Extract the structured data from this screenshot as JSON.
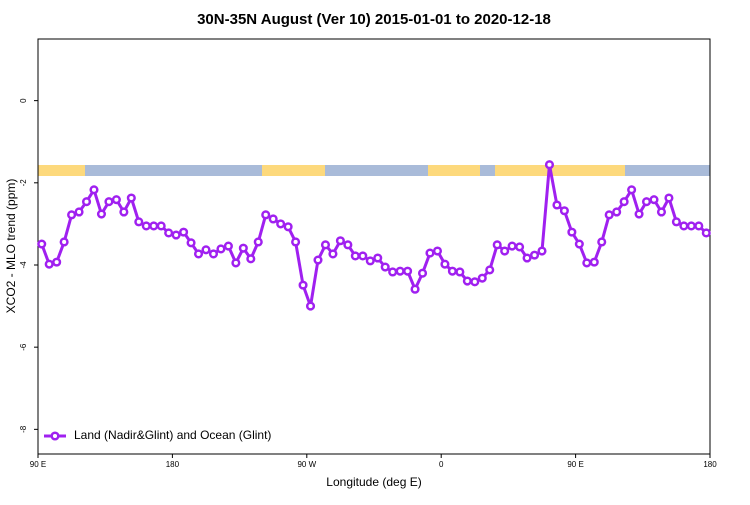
{
  "chart_data": {
    "type": "line",
    "title": "30N-35N August (Ver 10)   2015-01-01 to 2020-12-18",
    "x_label": "Longitude (deg E)",
    "y_label": "XCO2 - MLO trend (ppm)",
    "xlim": [
      90,
      540
    ],
    "xticks": [
      {
        "value": 90,
        "label": "90 E"
      },
      180,
      {
        "value": 270,
        "label": "90 W"
      },
      {
        "value": 360,
        "label": "0"
      },
      {
        "value": 450,
        "label": "90 E"
      },
      {
        "value": 540,
        "label": "180"
      }
    ],
    "ylim": [
      -8.6,
      1.5
    ],
    "yticks": [
      0,
      -2,
      -4,
      -6,
      -8
    ],
    "legend": "bottom-left",
    "x": [
      92.5,
      97.5,
      102.5,
      107.5,
      112.5,
      117.5,
      122.5,
      127.5,
      132.5,
      137.5,
      142.5,
      147.5,
      152.5,
      157.5,
      162.5,
      167.5,
      172.5,
      177.5,
      182.5,
      187.5,
      192.5,
      197.5,
      202.5,
      207.5,
      212.5,
      217.5,
      222.5,
      227.5,
      232.5,
      237.5,
      242.5,
      247.5,
      252.5,
      257.5,
      262.5,
      267.5,
      272.5,
      277.5,
      282.5,
      287.5,
      292.5,
      297.5,
      302.5,
      307.5,
      312.5,
      317.5,
      322.5,
      327.5,
      332.5,
      337.5,
      342.5,
      347.5,
      352.5,
      357.5,
      362.5,
      367.5,
      372.5,
      377.5,
      382.5,
      387.5,
      392.5,
      397.5,
      402.5,
      407.5,
      412.5,
      417.5,
      422.5,
      427.5,
      432.5,
      437.5,
      442.5,
      447.5,
      452.5,
      457.5,
      462.5,
      467.5,
      472.5,
      477.5,
      482.5,
      487.5,
      492.5,
      497.5,
      502.5,
      507.5,
      512.5,
      517.5,
      522.5,
      527.5,
      532.5,
      537.5
    ],
    "series": [
      {
        "name": "Land (Nadir&Glint) and Ocean (Glint)",
        "color": "#a020f0",
        "values": [
          -3.49,
          -3.98,
          -3.93,
          -3.44,
          -2.78,
          -2.71,
          -2.46,
          -2.17,
          -2.76,
          -2.46,
          -2.41,
          -2.71,
          -2.37,
          -2.95,
          -3.05,
          -3.05,
          -3.05,
          -3.22,
          -3.27,
          -3.2,
          -3.46,
          -3.73,
          -3.63,
          -3.73,
          -3.61,
          -3.54,
          -3.95,
          -3.59,
          -3.85,
          -3.44,
          -2.78,
          -2.88,
          -3.0,
          -3.07,
          -3.44,
          -4.49,
          -5.0,
          -3.88,
          -3.51,
          -3.73,
          -3.41,
          -3.51,
          -3.78,
          -3.78,
          -3.9,
          -3.83,
          -4.05,
          -4.17,
          -4.15,
          -4.15,
          -4.59,
          -4.2,
          -3.71,
          -3.66,
          -3.98,
          -4.15,
          -4.17,
          -4.39,
          -4.41,
          -4.32,
          -4.12,
          -3.51,
          -3.66,
          -3.54,
          -3.56,
          -3.83,
          -3.76,
          -3.66,
          -1.56,
          -2.54,
          -2.68,
          -3.2,
          -3.49,
          -3.95,
          -3.93,
          -3.44,
          -2.78,
          -2.71,
          -2.46,
          -2.17,
          -2.76,
          -2.46,
          -2.41,
          -2.71,
          -2.37,
          -2.95,
          -3.05,
          -3.05,
          -3.05,
          -3.22
        ]
      }
    ]
  }
}
